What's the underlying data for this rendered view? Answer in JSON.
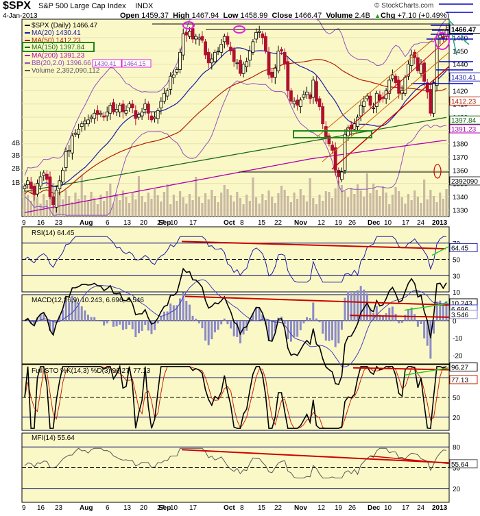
{
  "header": {
    "ticker": "$SPX",
    "name": "S&P 500 Large Cap Index",
    "exchange": "INDX",
    "date": "4-Jan-2013",
    "open_label": "Open",
    "open": "1459.37",
    "high_label": "High",
    "high": "1467.94",
    "low_label": "Low",
    "low": "1458.99",
    "close_label": "Close",
    "close": "1466.47",
    "volume_label": "Volume",
    "volume": "2.4B",
    "chg_label": "Chg",
    "chg": "+7.10 (+0.49%)",
    "watermark": "© StockCharts.com",
    "arrow_glyph": "▲"
  },
  "legend": {
    "spx": "$SPX (Daily) 1466.47",
    "ma20": "MA(20) 1430.41",
    "ma50": "MA(50) 1412.23",
    "ma150": "MA(150) 1397.84",
    "ma200": "MA(200) 1391.23",
    "bb": "BB(20,2.0) 1396.66",
    "bb_lo": "1430.41",
    "bb_hi": "1464.15",
    "volume": "Volume 2,392,090,112"
  },
  "panels": {
    "rsi": {
      "label": "RSI(14)",
      "value": "64.45"
    },
    "macd": {
      "label": "MACD(12,26,9)",
      "v1": "10.243",
      "v2": "6.696",
      "v3": "3.546"
    },
    "sto": {
      "label": "Full STO %K(14,3) %D(3)",
      "k": "96.27",
      "d": "77.13"
    },
    "mfi": {
      "label": "MFI(14)",
      "value": "55.64"
    }
  },
  "colors": {
    "panel_bg": "#fbf8c8",
    "up": "#000000",
    "down": "#b01030",
    "ma20": "#1a1aa8",
    "ma50": "#b02000",
    "ma150": "#1a6a1a",
    "ma200": "#b000b0",
    "bb": "#9050c0",
    "volume": "#c9b8a2",
    "trend_red": "#cc0000",
    "trend_green": "#22cc22",
    "channel": "#cc6600",
    "circle": "#e020e0",
    "box": "#1a8a1a"
  },
  "chart_data": {
    "type": "line",
    "title": "$SPX S&P 500 Large Cap Index INDX",
    "x_labels": [
      "9",
      "16",
      "23",
      "Aug",
      "6",
      "13",
      "20",
      "27",
      "Sep",
      "10",
      "17",
      "Oct",
      "8",
      "15",
      "22",
      "Nov",
      "12",
      "19",
      "26",
      "Dec",
      "10",
      "17",
      "24",
      "2013"
    ],
    "price_ticks": [
      1330,
      1340,
      1350,
      1360,
      1370,
      1380,
      1390,
      1400,
      1410,
      1420,
      1430,
      1440,
      1450,
      1460
    ],
    "volume_ticks": [
      "1B",
      "2B",
      "3B",
      "4B"
    ],
    "ylim": [
      1325,
      1474
    ],
    "price_markers": [
      {
        "value": 1466.47,
        "text": "1466.47",
        "color": "#000000"
      },
      {
        "value": 1430.41,
        "text": "1430.41",
        "color": "#1a1aa8"
      },
      {
        "value": 1412.23,
        "text": "1412.23",
        "color": "#b02000"
      },
      {
        "value": 1397.84,
        "text": "1397.84",
        "color": "#1a6a1a"
      },
      {
        "value": 1391.23,
        "text": "1391.23",
        "color": "#b000b0"
      }
    ],
    "volume_marker": "2392090",
    "candle_closes": [
      1348,
      1352,
      1346,
      1342,
      1350,
      1355,
      1358,
      1353,
      1340,
      1334,
      1345,
      1352,
      1360,
      1374,
      1375,
      1386,
      1388,
      1391,
      1395,
      1397,
      1398,
      1400,
      1403,
      1402,
      1403,
      1400,
      1404,
      1409,
      1404,
      1406,
      1409,
      1404,
      1405,
      1410,
      1407,
      1399,
      1402,
      1404,
      1410,
      1403,
      1398,
      1400,
      1405,
      1412,
      1418,
      1420,
      1431,
      1432,
      1436,
      1449,
      1463,
      1462,
      1465,
      1459,
      1461,
      1460,
      1458,
      1447,
      1441,
      1444,
      1449,
      1450,
      1455,
      1461,
      1455,
      1450,
      1442,
      1441,
      1433,
      1440,
      1442,
      1450,
      1457,
      1464,
      1465,
      1460,
      1450,
      1432,
      1430,
      1437,
      1450,
      1450,
      1440,
      1420,
      1412,
      1412,
      1409,
      1413,
      1417,
      1419,
      1414,
      1428,
      1412,
      1408,
      1395,
      1385,
      1380,
      1375,
      1360,
      1355,
      1359,
      1387,
      1392,
      1391,
      1395,
      1400,
      1409,
      1412,
      1416,
      1409,
      1407,
      1418,
      1413,
      1414,
      1420,
      1428,
      1432,
      1426,
      1418,
      1420,
      1430,
      1440,
      1447,
      1445,
      1435,
      1440,
      1427,
      1419,
      1403,
      1426,
      1459,
      1462,
      1459,
      1466.47
    ],
    "rsi": {
      "ylim": [
        10,
        90
      ],
      "ticks": [
        70,
        50,
        30,
        10
      ],
      "levels": [
        70,
        50,
        30
      ]
    },
    "macd": {
      "ylim": [
        -25,
        15
      ],
      "ticks": [
        10,
        0,
        -10,
        -20
      ]
    },
    "sto": {
      "ylim": [
        0,
        100
      ],
      "ticks": [
        80,
        50,
        20
      ],
      "levels": [
        80,
        50,
        20
      ]
    },
    "mfi": {
      "ylim": [
        0,
        100
      ],
      "ticks": [
        80,
        50,
        20
      ],
      "levels": [
        80,
        50,
        20
      ]
    }
  }
}
